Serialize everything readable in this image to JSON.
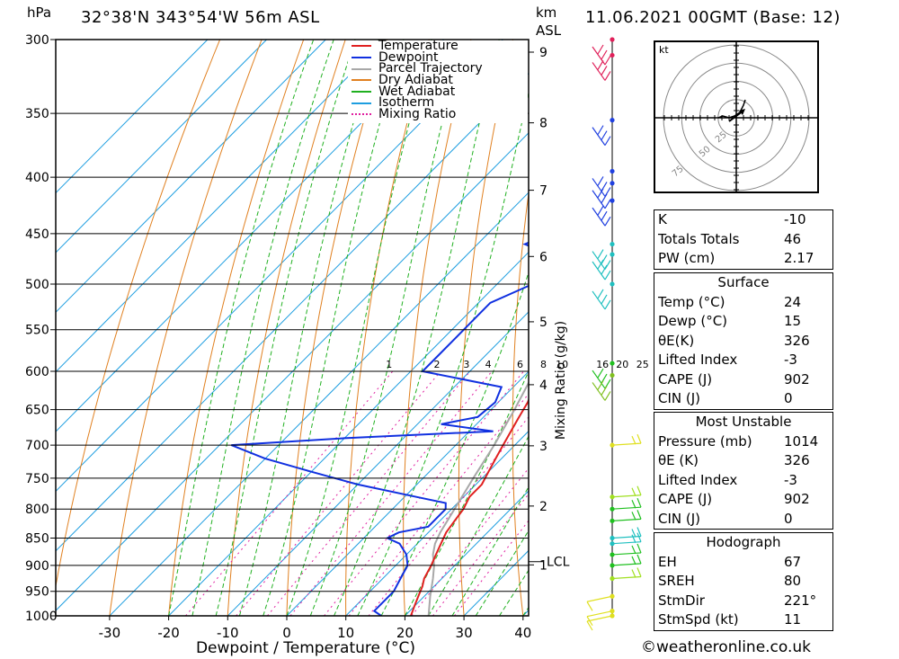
{
  "header": {
    "location": "32°38'N 343°54'W 56m ASL",
    "date": "11.06.2021 00GMT (Base: 12)",
    "p_unit": "hPa",
    "km_unit": "km",
    "asl": "ASL"
  },
  "axes": {
    "xlabel": "Dewpoint / Temperature (°C)",
    "mixing_label": "Mixing Ratio (g/kg)",
    "x_ticks": [
      "-30",
      "-20",
      "-10",
      "0",
      "10",
      "20",
      "30",
      "40"
    ],
    "p_ticks": [
      "300",
      "350",
      "400",
      "450",
      "500",
      "550",
      "600",
      "650",
      "700",
      "750",
      "800",
      "850",
      "900",
      "950",
      "1000"
    ],
    "km_ticks": [
      "9",
      "8",
      "7",
      "6",
      "5",
      "4",
      "3",
      "2",
      "1"
    ],
    "lcl": "LCL",
    "mix_ticks": [
      "1",
      "2",
      "3",
      "4",
      "6",
      "8",
      "10",
      "16",
      "20",
      "25"
    ]
  },
  "legend": [
    "Temperature",
    "Dewpoint",
    "Parcel Trajectory",
    "Dry Adiabat",
    "Wet Adiabat",
    "Isotherm",
    "Mixing Ratio"
  ],
  "colors": {
    "temperature": "#e02020",
    "dewpoint": "#1030e0",
    "parcel": "#a8a8a8",
    "dry_adiabat": "#e08020",
    "wet_adiabat": "#20b020",
    "isotherm": "#1e9ee0",
    "mixing_ratio": "#e020a0"
  },
  "chart_data": {
    "type": "line",
    "title": "32°38'N 343°54'W 56m ASL",
    "xlabel": "Dewpoint / Temperature (°C)",
    "ylabel": "hPa",
    "xlim": [
      -40,
      40
    ],
    "ylim": [
      1000,
      300
    ],
    "series": [
      {
        "name": "Temperature",
        "points": [
          [
            1000,
            21
          ],
          [
            980,
            20
          ],
          [
            960,
            19
          ],
          [
            940,
            18
          ],
          [
            925,
            17
          ],
          [
            900,
            16
          ],
          [
            880,
            15
          ],
          [
            860,
            14
          ],
          [
            840,
            13
          ],
          [
            820,
            12.5
          ],
          [
            800,
            12
          ],
          [
            780,
            11
          ],
          [
            760,
            11
          ],
          [
            740,
            10
          ],
          [
            720,
            9
          ],
          [
            700,
            8
          ],
          [
            680,
            7
          ],
          [
            660,
            6
          ],
          [
            640,
            5
          ],
          [
            620,
            3.5
          ],
          [
            600,
            1.5
          ],
          [
            580,
            1
          ],
          [
            560,
            -1.5
          ],
          [
            540,
            -3.5
          ],
          [
            520,
            -6
          ],
          [
            500,
            -8.5
          ],
          [
            480,
            -11
          ],
          [
            460,
            -13.5
          ],
          [
            440,
            -16.5
          ],
          [
            420,
            -19.5
          ],
          [
            400,
            -22.5
          ],
          [
            380,
            -25.5
          ],
          [
            360,
            -29
          ],
          [
            340,
            -32.5
          ],
          [
            320,
            -36
          ],
          [
            300,
            -39.5
          ]
        ]
      },
      {
        "name": "Dewpoint",
        "points": [
          [
            1000,
            16
          ],
          [
            990,
            14
          ],
          [
            970,
            14
          ],
          [
            950,
            14
          ],
          [
            925,
            13
          ],
          [
            900,
            12
          ],
          [
            880,
            10
          ],
          [
            860,
            7
          ],
          [
            850,
            4
          ],
          [
            840,
            5
          ],
          [
            830,
            9
          ],
          [
            800,
            9
          ],
          [
            790,
            8
          ],
          [
            780,
            2
          ],
          [
            760,
            -10
          ],
          [
            740,
            -20
          ],
          [
            720,
            -30
          ],
          [
            700,
            -38
          ],
          [
            690,
            -20
          ],
          [
            680,
            4
          ],
          [
            670,
            -6
          ],
          [
            660,
            -1
          ],
          [
            640,
            -0.5
          ],
          [
            620,
            -2
          ],
          [
            600,
            -18
          ],
          [
            580,
            -18
          ],
          [
            560,
            -18
          ],
          [
            540,
            -18
          ],
          [
            520,
            -18
          ],
          [
            500,
            -14
          ],
          [
            490,
            -13
          ],
          [
            470,
            -16
          ],
          [
            460,
            -22
          ],
          [
            440,
            -17
          ],
          [
            420,
            -14
          ],
          [
            400,
            -18
          ],
          [
            380,
            -22
          ],
          [
            360,
            -23
          ],
          [
            340,
            -25
          ],
          [
            320,
            -27
          ],
          [
            310,
            -27
          ],
          [
            306,
            -20
          ],
          [
            300,
            -18
          ]
        ]
      },
      {
        "name": "Parcel Trajectory",
        "points": [
          [
            1000,
            24
          ],
          [
            960,
            21
          ],
          [
            925,
            18.5
          ],
          [
            900,
            16.5
          ],
          [
            880,
            14.5
          ],
          [
            860,
            13
          ],
          [
            840,
            12
          ],
          [
            800,
            10.5
          ],
          [
            750,
            8.5
          ],
          [
            700,
            6.5
          ],
          [
            650,
            4
          ],
          [
            600,
            1
          ],
          [
            550,
            -3
          ],
          [
            500,
            -7.5
          ],
          [
            450,
            -13
          ],
          [
            400,
            -19
          ],
          [
            350,
            -26.5
          ],
          [
            300,
            -35
          ]
        ]
      }
    ],
    "stats": {
      "K": "-10",
      "Totals Totals": "46",
      "PW (cm)": "2.17",
      "Surface": {
        "Temp (°C)": "24",
        "Dewp (°C)": "15",
        "θE(K)": "326",
        "Lifted Index": "-3",
        "CAPE (J)": "902",
        "CIN (J)": "0"
      },
      "Most Unstable": {
        "Pressure (mb)": "1014",
        "θE (K)": "326",
        "Lifted Index": "-3",
        "CAPE (J)": "902",
        "CIN (J)": "0"
      },
      "Hodograph": {
        "EH": "67",
        "SREH": "80",
        "StmDir": "221°",
        "StmSpd (kt)": "11"
      }
    }
  },
  "stats_panel": {
    "block1": [
      {
        "k": "K",
        "v": "-10"
      },
      {
        "k": "Totals Totals",
        "v": "46"
      },
      {
        "k": "PW (cm)",
        "v": "2.17"
      }
    ],
    "surface_title": "Surface",
    "surface": [
      {
        "k": "Temp (°C)",
        "v": "24"
      },
      {
        "k": "Dewp (°C)",
        "v": "15"
      },
      {
        "k": "θE(K)",
        "v": "326"
      },
      {
        "k": "Lifted Index",
        "v": "-3"
      },
      {
        "k": "CAPE (J)",
        "v": "902"
      },
      {
        "k": "CIN (J)",
        "v": "0"
      }
    ],
    "mu_title": "Most Unstable",
    "mu": [
      {
        "k": "Pressure (mb)",
        "v": "1014"
      },
      {
        "k": "θE (K)",
        "v": "326"
      },
      {
        "k": "Lifted Index",
        "v": "-3"
      },
      {
        "k": "CAPE (J)",
        "v": "902"
      },
      {
        "k": "CIN (J)",
        "v": "0"
      }
    ],
    "hodo_title": "Hodograph",
    "hodo": [
      {
        "k": "EH",
        "v": "67"
      },
      {
        "k": "SREH",
        "v": "80"
      },
      {
        "k": "StmDir",
        "v": "221°"
      },
      {
        "k": "StmSpd (kt)",
        "v": "11"
      }
    ]
  },
  "hodograph": {
    "unit": "kt",
    "rings": [
      "25",
      "50",
      "75"
    ]
  },
  "footer": "©weatheronline.co.uk"
}
